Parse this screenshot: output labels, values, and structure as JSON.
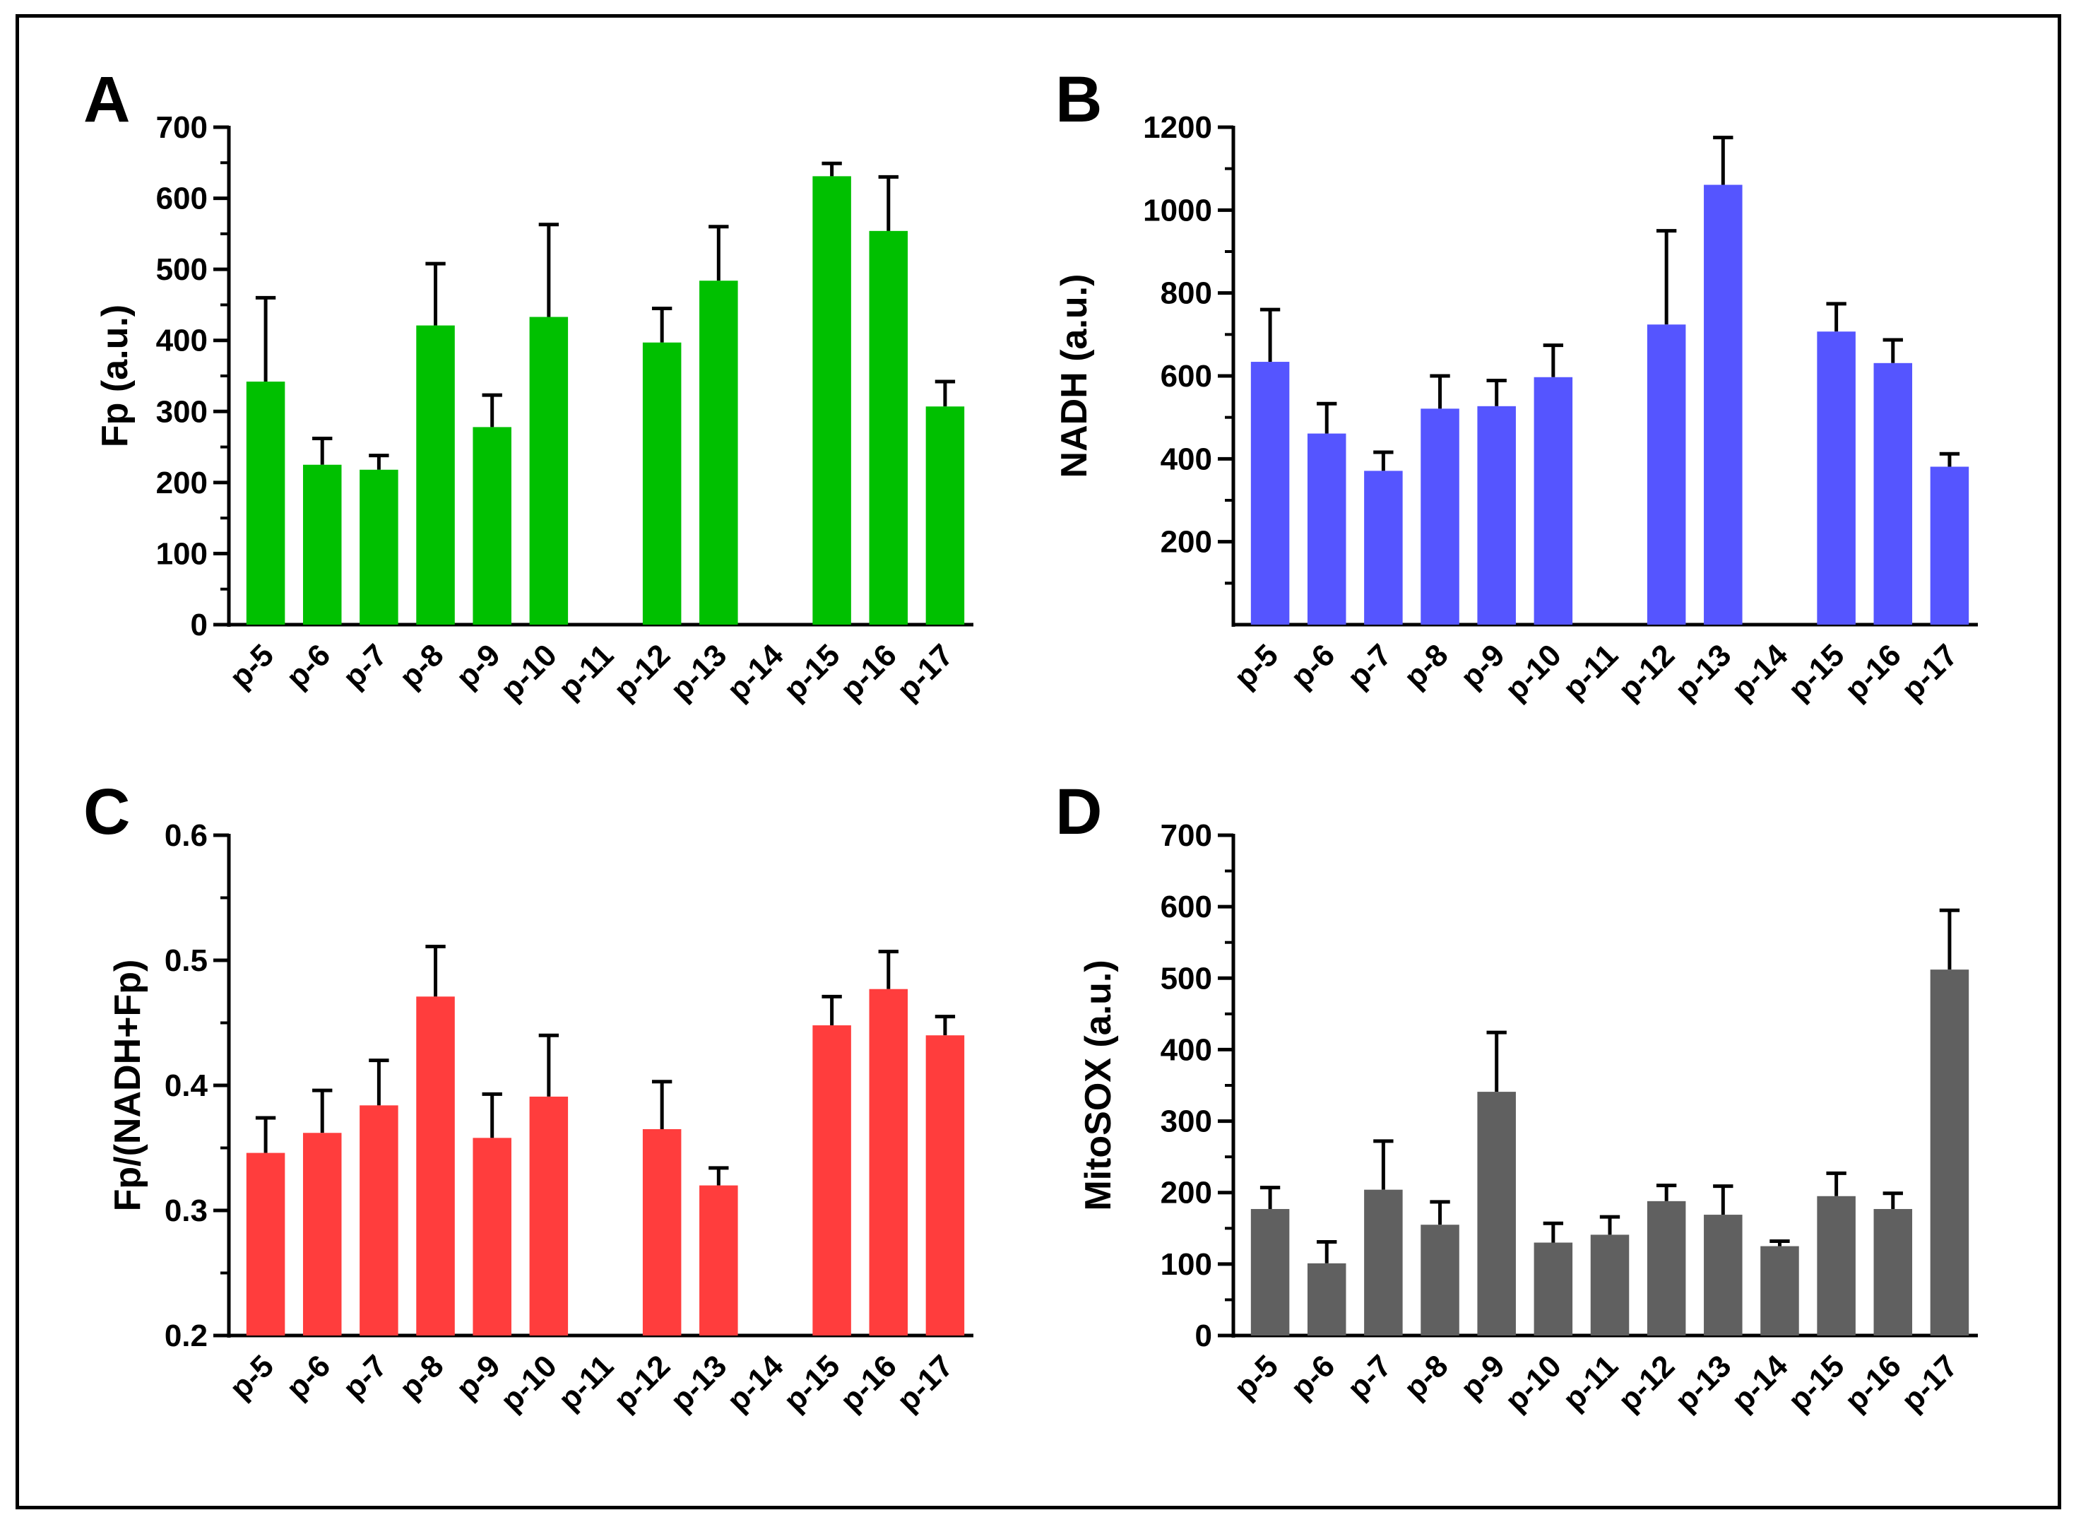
{
  "chart_data": [
    {
      "type": "bar",
      "panel": "A",
      "title": "",
      "xlabel": "",
      "ylabel": "Fp (a.u.)",
      "ylim": [
        0,
        700
      ],
      "yticks": [
        0,
        100,
        200,
        300,
        400,
        500,
        600,
        700
      ],
      "color": "#00c000",
      "categories": [
        "p-5",
        "p-6",
        "p-7",
        "p-8",
        "p-9",
        "p-10",
        "p-11",
        "p-12",
        "p-13",
        "p-14",
        "p-15",
        "p-16",
        "p-17"
      ],
      "values": [
        342,
        225,
        218,
        421,
        278,
        433,
        null,
        397,
        484,
        null,
        631,
        554,
        307
      ],
      "errors": [
        118,
        37,
        20,
        87,
        45,
        130,
        null,
        48,
        76,
        null,
        18,
        76,
        35
      ]
    },
    {
      "type": "bar",
      "panel": "B",
      "title": "",
      "xlabel": "",
      "ylabel": "NADH (a.u.)",
      "ylim": [
        0,
        1200
      ],
      "yticks": [
        200,
        400,
        600,
        800,
        1000,
        1200
      ],
      "color": "#5555ff",
      "categories": [
        "p-5",
        "p-6",
        "p-7",
        "p-8",
        "p-9",
        "p-10",
        "p-11",
        "p-12",
        "p-13",
        "p-14",
        "p-15",
        "p-16",
        "p-17"
      ],
      "values": [
        634,
        461,
        371,
        521,
        527,
        597,
        null,
        724,
        1061,
        null,
        707,
        631,
        381
      ],
      "errors": [
        126,
        72,
        45,
        79,
        62,
        77,
        null,
        226,
        114,
        null,
        67,
        56,
        31
      ]
    },
    {
      "type": "bar",
      "panel": "C",
      "title": "",
      "xlabel": "",
      "ylabel": "Fp/(NADH+Fp)",
      "ylim": [
        0.2,
        0.6
      ],
      "yticks": [
        "0.2",
        "0.3",
        "0.4",
        "0.5",
        "0.6"
      ],
      "color": "#ff3d3d",
      "categories": [
        "p-5",
        "p-6",
        "p-7",
        "p-8",
        "p-9",
        "p-10",
        "p-11",
        "p-12",
        "p-13",
        "p-14",
        "p-15",
        "p-16",
        "p-17"
      ],
      "values": [
        0.346,
        0.362,
        0.384,
        0.471,
        0.358,
        0.391,
        null,
        0.365,
        0.32,
        null,
        0.448,
        0.477,
        0.44
      ],
      "errors": [
        0.028,
        0.034,
        0.036,
        0.04,
        0.035,
        0.049,
        null,
        0.038,
        0.014,
        null,
        0.023,
        0.03,
        0.015
      ]
    },
    {
      "type": "bar",
      "panel": "D",
      "title": "",
      "xlabel": "",
      "ylabel": "MitoSOX (a.u.)",
      "ylim": [
        0,
        700
      ],
      "yticks": [
        0,
        100,
        200,
        300,
        400,
        500,
        600,
        700
      ],
      "color": "#606060",
      "categories": [
        "p-5",
        "p-6",
        "p-7",
        "p-8",
        "p-9",
        "p-10",
        "p-11",
        "p-12",
        "p-13",
        "p-14",
        "p-15",
        "p-16",
        "p-17"
      ],
      "values": [
        177,
        101,
        204,
        155,
        341,
        130,
        141,
        188,
        169,
        125,
        195,
        177,
        512
      ],
      "errors": [
        30,
        30,
        68,
        32,
        83,
        27,
        25,
        22,
        40,
        7,
        32,
        22,
        83
      ]
    }
  ]
}
